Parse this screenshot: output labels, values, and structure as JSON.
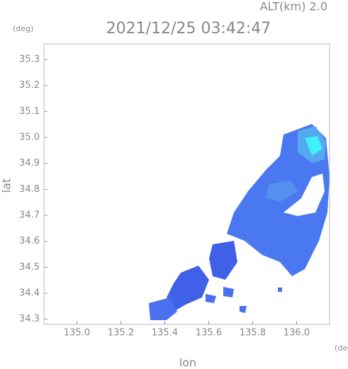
{
  "chart_data": {
    "type": "map",
    "title": "2021/12/25 03:42:47",
    "altitude_label": "ALT(km) 2.0",
    "y_unit": "(deg)",
    "x_unit": "(deg)",
    "x_label": "lon",
    "y_label": "lat",
    "xlim": [
      134.85,
      136.15
    ],
    "ylim": [
      34.28,
      35.36
    ],
    "xticks": [
      {
        "value": 135,
        "label": "135.0"
      },
      135.2,
      135.4,
      135.6,
      135.8,
      {
        "value": 136,
        "label": "136.0"
      }
    ],
    "yticks": [
      34.3,
      34.4,
      34.5,
      34.6,
      34.7,
      34.8,
      34.9,
      {
        "value": 35,
        "label": "35.0"
      },
      35.1,
      35.2,
      35.3
    ]
  }
}
